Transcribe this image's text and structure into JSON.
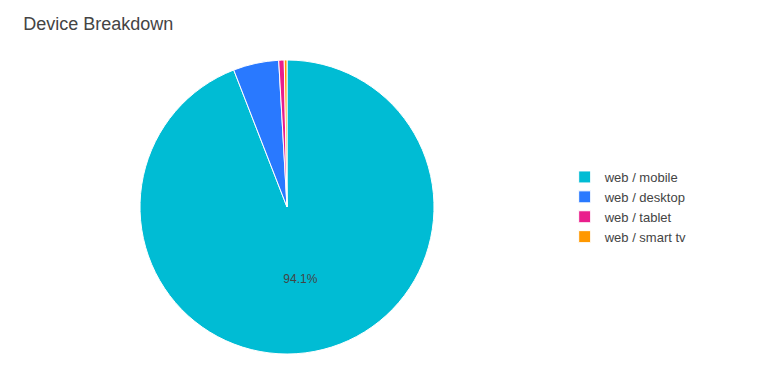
{
  "chart_data": {
    "type": "pie",
    "title": "Device Breakdown",
    "categories": [
      "web / mobile",
      "web / desktop",
      "web / tablet",
      "web / smart tv"
    ],
    "values": [
      94.1,
      5.0,
      0.6,
      0.3
    ],
    "value_labels": [
      "94.1%",
      null,
      null,
      null
    ],
    "data_labels": true,
    "colors": [
      "#00BCD4",
      "#2979FF",
      "#E91E8C",
      "#FF9800"
    ],
    "legend": "right"
  }
}
